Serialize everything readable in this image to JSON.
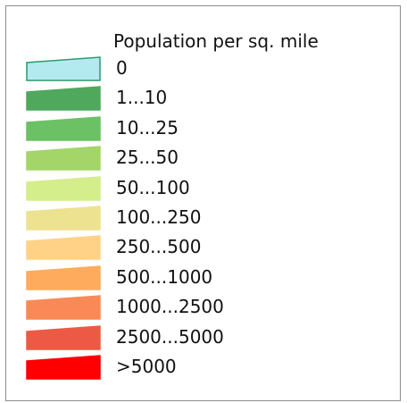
{
  "legend": {
    "title": "Population per sq. mile",
    "classes": [
      {
        "label": "0",
        "color": "#b3eaf0",
        "stroke": "#2a9a6a"
      },
      {
        "label": "1...10",
        "color": "#4fa85c",
        "stroke": "#4fa85c"
      },
      {
        "label": "10...25",
        "color": "#6bc163",
        "stroke": "#6bc163"
      },
      {
        "label": "25...50",
        "color": "#a3d568",
        "stroke": "#a3d568"
      },
      {
        "label": "50...100",
        "color": "#d3ee8a",
        "stroke": "#d3ee8a"
      },
      {
        "label": "100...250",
        "color": "#ede28f",
        "stroke": "#ede28f"
      },
      {
        "label": "250...500",
        "color": "#ffd287",
        "stroke": "#ffd287"
      },
      {
        "label": "500...1000",
        "color": "#ffab5e",
        "stroke": "#ffab5e"
      },
      {
        "label": "1000...2500",
        "color": "#f98a57",
        "stroke": "#f98a57"
      },
      {
        "label": "2500...5000",
        "color": "#ec5a45",
        "stroke": "#ec5a45"
      },
      {
        "label": ">5000",
        "color": "#ff0000",
        "stroke": "#ff0000"
      }
    ]
  }
}
